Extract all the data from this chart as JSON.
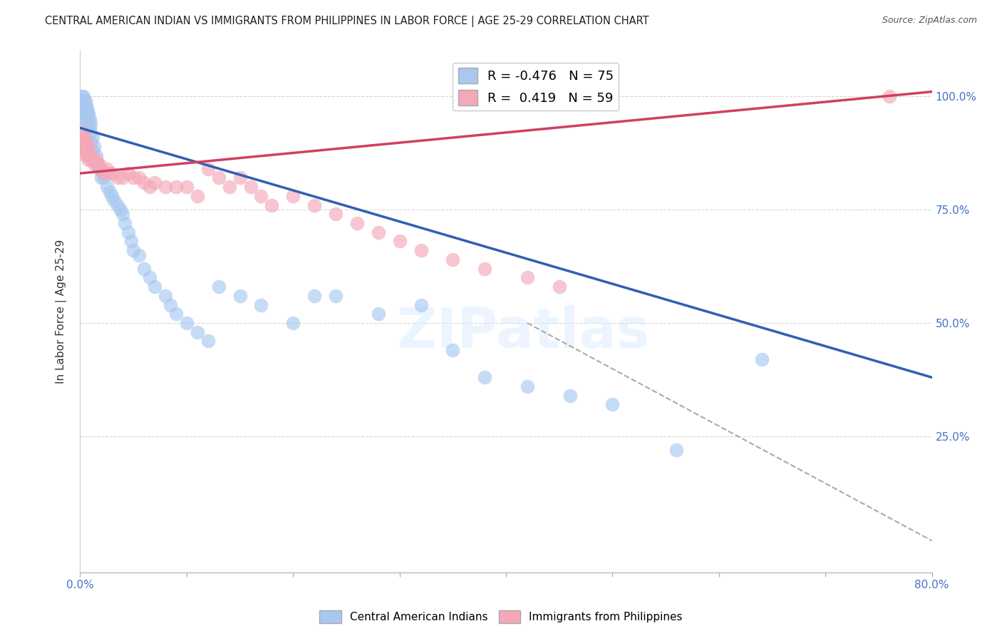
{
  "title": "CENTRAL AMERICAN INDIAN VS IMMIGRANTS FROM PHILIPPINES IN LABOR FORCE | AGE 25-29 CORRELATION CHART",
  "source": "Source: ZipAtlas.com",
  "ylabel": "In Labor Force | Age 25-29",
  "xmin": 0.0,
  "xmax": 0.8,
  "ymin": -0.05,
  "ymax": 1.1,
  "blue_R": -0.476,
  "blue_N": 75,
  "pink_R": 0.419,
  "pink_N": 59,
  "blue_color": "#a8c8f0",
  "pink_color": "#f4a8b8",
  "blue_line_color": "#3060b0",
  "pink_line_color": "#d04060",
  "legend_label_blue": "Central American Indians",
  "legend_label_pink": "Immigrants from Philippines",
  "watermark_text": "ZIPatlas",
  "right_axis_color": "#4472C4",
  "right_ytick_labels": [
    "25.0%",
    "50.0%",
    "75.0%",
    "100.0%"
  ],
  "right_ytick_values": [
    0.25,
    0.5,
    0.75,
    1.0
  ],
  "grid_color": "#cccccc",
  "blue_trendline_x": [
    0.0,
    0.8
  ],
  "blue_trendline_y": [
    0.93,
    0.38
  ],
  "pink_trendline_x": [
    0.0,
    0.8
  ],
  "pink_trendline_y": [
    0.83,
    1.01
  ],
  "dashed_line_x": [
    0.42,
    0.8
  ],
  "dashed_line_y": [
    0.5,
    0.02
  ],
  "blue_scatter_x": [
    0.002,
    0.002,
    0.002,
    0.003,
    0.003,
    0.003,
    0.003,
    0.004,
    0.004,
    0.004,
    0.004,
    0.005,
    0.005,
    0.005,
    0.005,
    0.005,
    0.006,
    0.006,
    0.006,
    0.006,
    0.007,
    0.007,
    0.007,
    0.008,
    0.008,
    0.009,
    0.009,
    0.01,
    0.01,
    0.01,
    0.012,
    0.012,
    0.013,
    0.013,
    0.015,
    0.016,
    0.018,
    0.02,
    0.022,
    0.025,
    0.028,
    0.03,
    0.032,
    0.035,
    0.038,
    0.04,
    0.042,
    0.045,
    0.048,
    0.05,
    0.055,
    0.06,
    0.065,
    0.07,
    0.08,
    0.085,
    0.09,
    0.1,
    0.11,
    0.12,
    0.13,
    0.15,
    0.17,
    0.2,
    0.22,
    0.24,
    0.28,
    0.32,
    0.35,
    0.38,
    0.42,
    0.46,
    0.5,
    0.56,
    0.64
  ],
  "blue_scatter_y": [
    1.0,
    0.99,
    0.98,
    1.0,
    0.99,
    0.98,
    0.97,
    0.99,
    0.98,
    0.97,
    0.96,
    0.99,
    0.98,
    0.97,
    0.96,
    0.95,
    0.98,
    0.97,
    0.96,
    0.94,
    0.97,
    0.96,
    0.94,
    0.96,
    0.94,
    0.95,
    0.93,
    0.94,
    0.92,
    0.9,
    0.91,
    0.88,
    0.89,
    0.86,
    0.87,
    0.85,
    0.84,
    0.82,
    0.82,
    0.8,
    0.79,
    0.78,
    0.77,
    0.76,
    0.75,
    0.74,
    0.72,
    0.7,
    0.68,
    0.66,
    0.65,
    0.62,
    0.6,
    0.58,
    0.56,
    0.54,
    0.52,
    0.5,
    0.48,
    0.46,
    0.58,
    0.56,
    0.54,
    0.5,
    0.56,
    0.56,
    0.52,
    0.54,
    0.44,
    0.38,
    0.36,
    0.34,
    0.32,
    0.22,
    0.42
  ],
  "pink_scatter_x": [
    0.002,
    0.002,
    0.003,
    0.003,
    0.004,
    0.004,
    0.005,
    0.005,
    0.005,
    0.006,
    0.006,
    0.007,
    0.007,
    0.008,
    0.008,
    0.009,
    0.01,
    0.011,
    0.012,
    0.013,
    0.015,
    0.016,
    0.018,
    0.02,
    0.022,
    0.025,
    0.028,
    0.03,
    0.035,
    0.04,
    0.045,
    0.05,
    0.055,
    0.06,
    0.065,
    0.07,
    0.08,
    0.09,
    0.1,
    0.11,
    0.12,
    0.13,
    0.14,
    0.15,
    0.16,
    0.17,
    0.18,
    0.2,
    0.22,
    0.24,
    0.26,
    0.28,
    0.3,
    0.32,
    0.35,
    0.38,
    0.42,
    0.45,
    0.76
  ],
  "pink_scatter_y": [
    0.92,
    0.9,
    0.91,
    0.89,
    0.91,
    0.89,
    0.9,
    0.88,
    0.87,
    0.9,
    0.88,
    0.89,
    0.87,
    0.88,
    0.86,
    0.87,
    0.87,
    0.86,
    0.86,
    0.85,
    0.86,
    0.85,
    0.85,
    0.84,
    0.83,
    0.84,
    0.83,
    0.83,
    0.82,
    0.82,
    0.83,
    0.82,
    0.82,
    0.81,
    0.8,
    0.81,
    0.8,
    0.8,
    0.8,
    0.78,
    0.84,
    0.82,
    0.8,
    0.82,
    0.8,
    0.78,
    0.76,
    0.78,
    0.76,
    0.74,
    0.72,
    0.7,
    0.68,
    0.66,
    0.64,
    0.62,
    0.6,
    0.58,
    1.0
  ]
}
